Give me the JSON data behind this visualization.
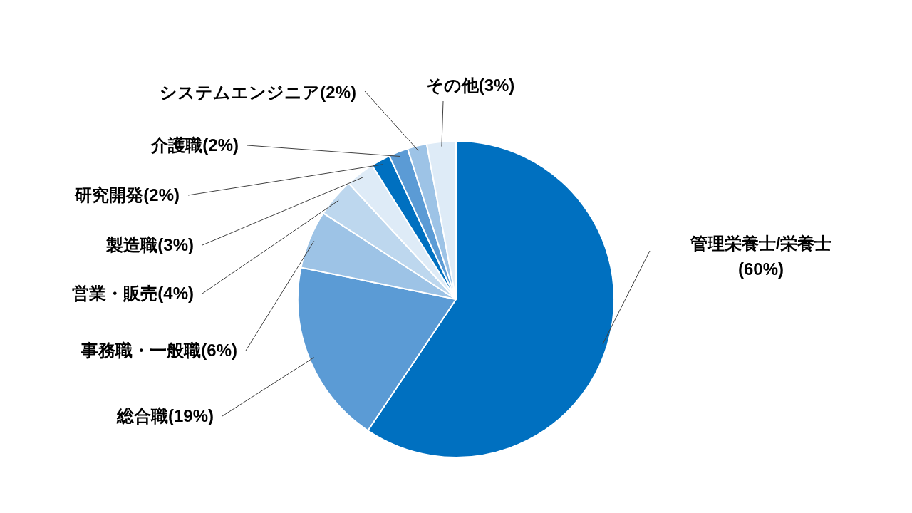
{
  "chart_data": {
    "type": "pie",
    "categories": [
      "管理栄養士/栄養士",
      "総合職",
      "事務職・一般職",
      "営業・販売",
      "製造職",
      "研究開発",
      "介護職",
      "システムエンジニア",
      "その他"
    ],
    "values": [
      60,
      19,
      6,
      4,
      3,
      2,
      2,
      2,
      3
    ],
    "value_labels": [
      "(60%)",
      "(19%)",
      "(6%)",
      "(4%)",
      "(3%)",
      "(2%)",
      "(2%)",
      "(2%)",
      "(3%)"
    ],
    "colors": [
      "#0070c0",
      "#5b9bd5",
      "#9dc3e6",
      "#bdd7ee",
      "#deebf7",
      "#0070c0",
      "#5b9bd5",
      "#9dc3e6",
      "#deebf7"
    ]
  }
}
